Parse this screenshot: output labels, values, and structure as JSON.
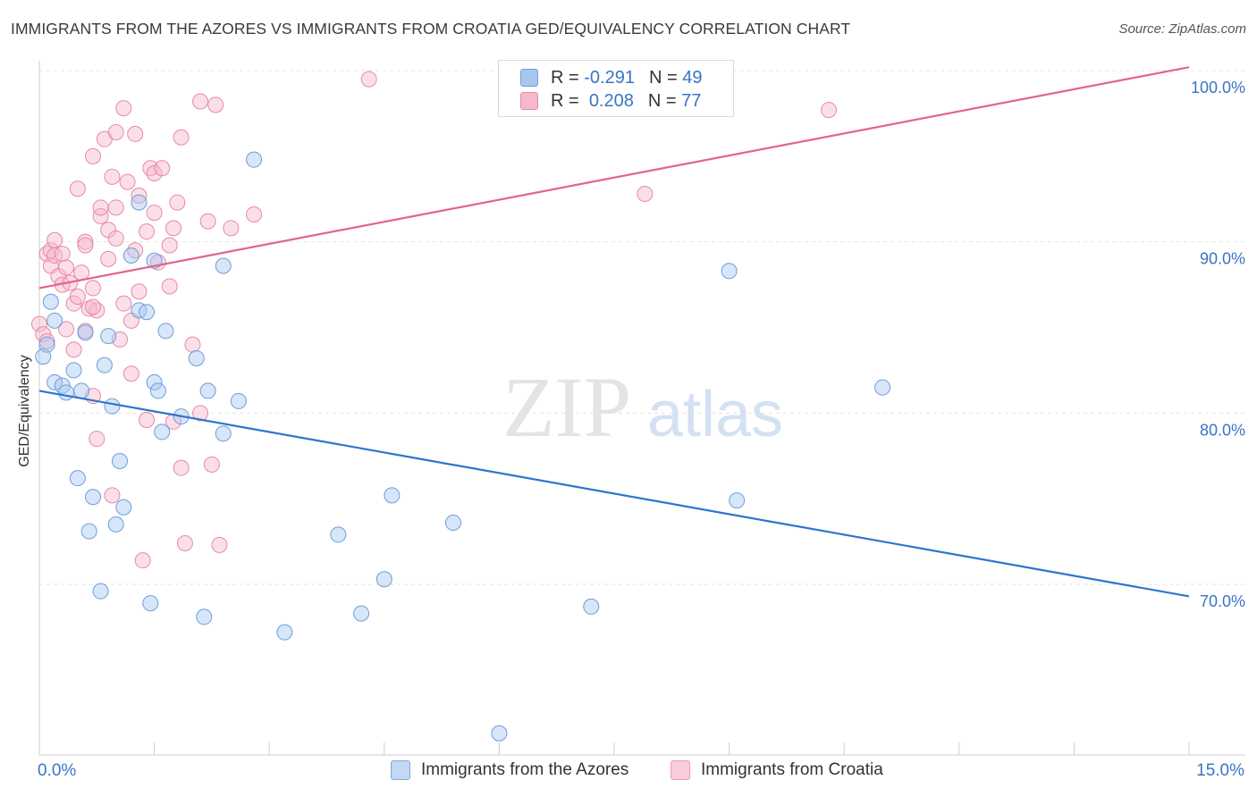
{
  "title": "IMMIGRANTS FROM THE AZORES VS IMMIGRANTS FROM CROATIA GED/EQUIVALENCY CORRELATION CHART",
  "source": "Source: ZipAtlas.com",
  "watermark": {
    "zip": "ZIP",
    "atlas": "atlas"
  },
  "legend_top": {
    "rows": [
      {
        "r_label": "R =",
        "r_value": "-0.291",
        "n_label": "N =",
        "n_value": "49",
        "color": "#a7c7ef",
        "border": "#6d9edb"
      },
      {
        "r_label": "R =",
        "r_value": "0.208",
        "n_label": "N =",
        "n_value": "77",
        "color": "#f6b8cb",
        "border": "#e889a6"
      }
    ]
  },
  "legend_bottom": [
    {
      "label": "Immigrants from the Azores",
      "color": "#c3d8f3",
      "border": "#7fa8de"
    },
    {
      "label": "Immigrants from Croatia",
      "color": "#f9cdd9",
      "border": "#ec9ab2"
    }
  ],
  "chart_data": {
    "type": "scatter",
    "title": "IMMIGRANTS FROM THE AZORES VS IMMIGRANTS FROM CROATIA GED/EQUIVALENCY CORRELATION CHART",
    "xlabel": "",
    "ylabel": "GED/Equivalency",
    "xlim": [
      0,
      15
    ],
    "ylim": [
      60.0,
      100.0
    ],
    "x_tick_labels": {
      "min": "0.0%",
      "max": "15.0%"
    },
    "y_ticks": [
      {
        "value": 100.0,
        "label": "100.0%"
      },
      {
        "value": 90.0,
        "label": "90.0%"
      },
      {
        "value": 80.0,
        "label": "80.0%"
      },
      {
        "value": 70.0,
        "label": "70.0%"
      }
    ],
    "grid": true,
    "series": [
      {
        "name": "Immigrants from the Azores",
        "color": "#a7c7ef",
        "stroke": "#6d9edb",
        "trend_color": "#2f74d0",
        "trend": {
          "x0": 0,
          "y0": 81.3,
          "x1": 15,
          "y1": 69.3
        },
        "points": [
          [
            0.05,
            83.3
          ],
          [
            0.1,
            84.0
          ],
          [
            0.15,
            86.5
          ],
          [
            0.2,
            85.4
          ],
          [
            0.2,
            81.8
          ],
          [
            0.3,
            81.6
          ],
          [
            0.35,
            81.2
          ],
          [
            0.45,
            82.5
          ],
          [
            0.5,
            76.2
          ],
          [
            0.55,
            81.3
          ],
          [
            0.6,
            84.7
          ],
          [
            0.65,
            73.1
          ],
          [
            0.7,
            75.1
          ],
          [
            0.8,
            69.6
          ],
          [
            0.85,
            82.8
          ],
          [
            0.9,
            84.5
          ],
          [
            0.95,
            80.4
          ],
          [
            1.0,
            73.5
          ],
          [
            1.05,
            77.2
          ],
          [
            1.1,
            74.5
          ],
          [
            1.2,
            89.2
          ],
          [
            1.3,
            92.3
          ],
          [
            1.3,
            86.0
          ],
          [
            1.4,
            85.9
          ],
          [
            1.45,
            68.9
          ],
          [
            1.5,
            88.9
          ],
          [
            1.5,
            81.8
          ],
          [
            1.55,
            81.3
          ],
          [
            1.6,
            78.9
          ],
          [
            1.65,
            84.8
          ],
          [
            1.85,
            79.8
          ],
          [
            2.05,
            83.2
          ],
          [
            2.15,
            68.1
          ],
          [
            2.2,
            81.3
          ],
          [
            2.4,
            78.8
          ],
          [
            2.4,
            88.6
          ],
          [
            2.6,
            80.7
          ],
          [
            2.8,
            94.8
          ],
          [
            3.2,
            67.2
          ],
          [
            3.9,
            72.9
          ],
          [
            4.2,
            68.3
          ],
          [
            4.5,
            70.3
          ],
          [
            4.6,
            75.2
          ],
          [
            5.4,
            73.6
          ],
          [
            6.0,
            61.3
          ],
          [
            7.2,
            68.7
          ],
          [
            9.0,
            88.3
          ],
          [
            9.1,
            74.9
          ],
          [
            11.0,
            81.5
          ]
        ]
      },
      {
        "name": "Immigrants from Croatia",
        "color": "#f6b8cb",
        "stroke": "#e889a6",
        "trend_color": "#e2648e",
        "trend": {
          "x0": 0,
          "y0": 87.3,
          "x1": 15,
          "y1": 100.2
        },
        "points": [
          [
            0.0,
            85.2
          ],
          [
            0.05,
            84.6
          ],
          [
            0.1,
            89.3
          ],
          [
            0.1,
            84.2
          ],
          [
            0.15,
            89.5
          ],
          [
            0.15,
            88.6
          ],
          [
            0.2,
            90.1
          ],
          [
            0.2,
            89.2
          ],
          [
            0.25,
            88.0
          ],
          [
            0.3,
            89.3
          ],
          [
            0.3,
            87.5
          ],
          [
            0.35,
            88.5
          ],
          [
            0.4,
            87.6
          ],
          [
            0.45,
            83.7
          ],
          [
            0.45,
            86.4
          ],
          [
            0.5,
            93.1
          ],
          [
            0.5,
            86.8
          ],
          [
            0.55,
            88.2
          ],
          [
            0.6,
            90.0
          ],
          [
            0.6,
            84.8
          ],
          [
            0.65,
            86.1
          ],
          [
            0.7,
            95.0
          ],
          [
            0.7,
            87.3
          ],
          [
            0.7,
            81.0
          ],
          [
            0.75,
            86.0
          ],
          [
            0.7,
            86.2
          ],
          [
            0.8,
            91.5
          ],
          [
            0.8,
            92.0
          ],
          [
            0.75,
            78.5
          ],
          [
            0.85,
            96.0
          ],
          [
            0.9,
            90.7
          ],
          [
            0.95,
            93.8
          ],
          [
            0.95,
            75.2
          ],
          [
            1.0,
            92.0
          ],
          [
            1.0,
            90.2
          ],
          [
            1.05,
            84.3
          ],
          [
            1.1,
            97.8
          ],
          [
            1.1,
            86.4
          ],
          [
            1.15,
            93.5
          ],
          [
            1.2,
            85.4
          ],
          [
            1.25,
            96.3
          ],
          [
            1.25,
            89.5
          ],
          [
            1.3,
            92.7
          ],
          [
            1.3,
            87.1
          ],
          [
            1.35,
            71.4
          ],
          [
            1.4,
            79.6
          ],
          [
            1.4,
            90.6
          ],
          [
            1.45,
            94.3
          ],
          [
            1.5,
            94.0
          ],
          [
            1.5,
            91.7
          ],
          [
            1.55,
            88.8
          ],
          [
            1.6,
            94.3
          ],
          [
            1.7,
            89.8
          ],
          [
            1.7,
            87.4
          ],
          [
            1.75,
            90.8
          ],
          [
            1.75,
            79.5
          ],
          [
            1.8,
            92.3
          ],
          [
            1.85,
            96.1
          ],
          [
            1.85,
            76.8
          ],
          [
            1.9,
            72.4
          ],
          [
            2.1,
            98.2
          ],
          [
            2.1,
            80.0
          ],
          [
            2.2,
            91.2
          ],
          [
            2.25,
            77.0
          ],
          [
            2.3,
            98.0
          ],
          [
            2.35,
            72.3
          ],
          [
            2.5,
            90.8
          ],
          [
            2.8,
            91.6
          ],
          [
            4.3,
            99.5
          ],
          [
            7.9,
            92.8
          ],
          [
            10.3,
            97.7
          ],
          [
            1.0,
            96.4
          ],
          [
            0.6,
            89.8
          ],
          [
            0.9,
            89.0
          ],
          [
            0.35,
            84.9
          ],
          [
            1.2,
            82.3
          ],
          [
            2.0,
            84.0
          ]
        ]
      }
    ]
  }
}
